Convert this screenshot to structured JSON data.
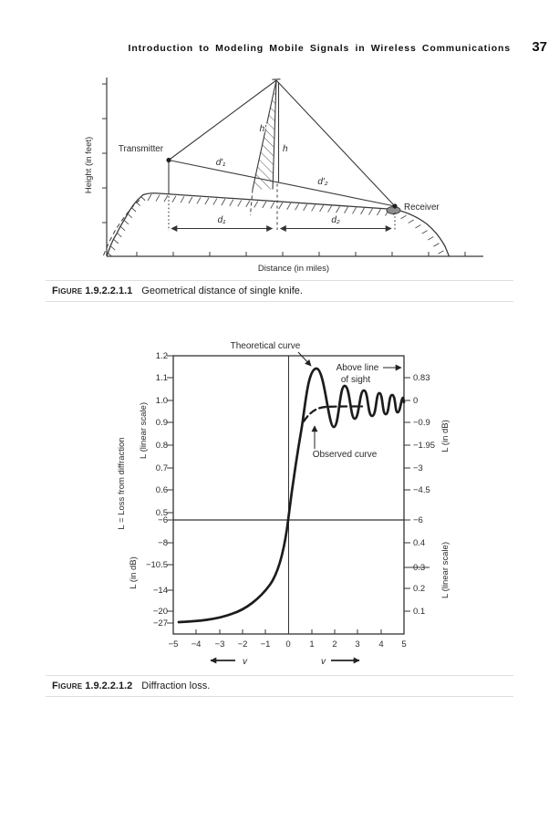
{
  "page": {
    "header_title": "Introduction to Modeling Mobile Signals in Wireless Communications",
    "page_number": "37"
  },
  "figure1": {
    "caption_label": "Figure",
    "caption_number": "1.9.2.2.1.1",
    "caption_text": "Geometrical distance of single knife.",
    "y_axis_label": "Height (in feet)",
    "x_axis_label": "Distance (in miles)",
    "transmitter_label": "Transmitter",
    "receiver_label": "Receiver",
    "labels": {
      "h_prime": "h′",
      "h": "h",
      "d1_prime": "d′₁",
      "d2_prime": "d′₂",
      "d1": "d₁",
      "d2": "d₂"
    }
  },
  "figure2": {
    "caption_label": "Figure",
    "caption_number": "1.9.2.2.1.2",
    "caption_text": "Diffraction loss.",
    "annotations": {
      "theoretical": "Theoretical curve",
      "above1": "Above line",
      "above2": "of sight",
      "observed": "Observed curve"
    },
    "axis_titles": {
      "left_main": "L = Loss from diffraction",
      "left_upper": "L (linear scale)",
      "left_lower": "L (in dB)",
      "right_upper": "L (in dB)",
      "right_lower": "L (linear scale)"
    },
    "x_axis_var": "v",
    "left_linear_ticks": [
      "1.2",
      "1.1",
      "1.0",
      "0.9",
      "0.8",
      "0.7",
      "0.6",
      "0.5"
    ],
    "left_db_ticks": [
      "−6",
      "−8",
      "−10.5",
      "−14",
      "−20",
      "−27"
    ],
    "right_db_ticks": [
      "0.83",
      "0",
      "−0.9",
      "−1.95",
      "−3",
      "−4.5",
      "−6"
    ],
    "right_linear_ticks": [
      "0.4",
      "0.3",
      "0.2",
      "0.1"
    ],
    "x_ticks": [
      "−5",
      "−4",
      "−3",
      "−2",
      "−1",
      "0",
      "1",
      "2",
      "3",
      "4",
      "5"
    ]
  },
  "chart_data": {
    "type": "line",
    "title": "Diffraction loss",
    "xlabel": "v",
    "x_range": [
      -5,
      5
    ],
    "grid": false,
    "left_axis": {
      "upper_label": "L (linear scale)",
      "upper_ticks": [
        1.2,
        1.1,
        1.0,
        0.9,
        0.8,
        0.7,
        0.6,
        0.5
      ],
      "lower_label": "L (in dB)",
      "lower_ticks": [
        -6,
        -8,
        -10.5,
        -14,
        -20,
        -27
      ]
    },
    "right_axis": {
      "upper_label": "L (in dB)",
      "upper_ticks": [
        0.83,
        0,
        -0.9,
        -1.95,
        -3,
        -4.5,
        -6
      ],
      "lower_label": "L (linear scale)",
      "lower_ticks": [
        0.4,
        0.3,
        0.2,
        0.1
      ]
    },
    "reference_lines": {
      "vertical_at_v": 0,
      "horizontal_at_db": -6
    },
    "series": [
      {
        "name": "Theoretical curve",
        "style": "solid",
        "unit": "dB",
        "points": [
          [
            -4.5,
            -27
          ],
          [
            -4,
            -26.3
          ],
          [
            -3.5,
            -25.2
          ],
          [
            -3,
            -23.8
          ],
          [
            -2.5,
            -22
          ],
          [
            -2,
            -19.6
          ],
          [
            -1.5,
            -16.6
          ],
          [
            -1,
            -13.4
          ],
          [
            -0.5,
            -9.6
          ],
          [
            0,
            -6
          ],
          [
            0.4,
            -2.9
          ],
          [
            0.8,
            0.2
          ],
          [
            1.2,
            1.2
          ],
          [
            1.6,
            0.2
          ],
          [
            2,
            -1
          ],
          [
            2.3,
            0.6
          ],
          [
            2.7,
            -0.7
          ],
          [
            3,
            0.45
          ],
          [
            3.4,
            -0.55
          ],
          [
            3.7,
            0.4
          ],
          [
            4,
            -0.45
          ],
          [
            4.3,
            0.35
          ],
          [
            4.6,
            -0.4
          ],
          [
            4.9,
            0.3
          ],
          [
            5,
            -0.45
          ]
        ]
      },
      {
        "name": "Observed curve",
        "style": "dashed",
        "unit": "linear",
        "points": [
          [
            0.7,
            0.9
          ],
          [
            0.9,
            0.94
          ],
          [
            1.1,
            0.96
          ],
          [
            1.4,
            0.975
          ],
          [
            1.7,
            0.98
          ],
          [
            2.0,
            0.98
          ],
          [
            2.4,
            0.98
          ]
        ]
      }
    ],
    "annotations": [
      "Theoretical curve",
      "Above line of sight",
      "Observed curve"
    ]
  }
}
